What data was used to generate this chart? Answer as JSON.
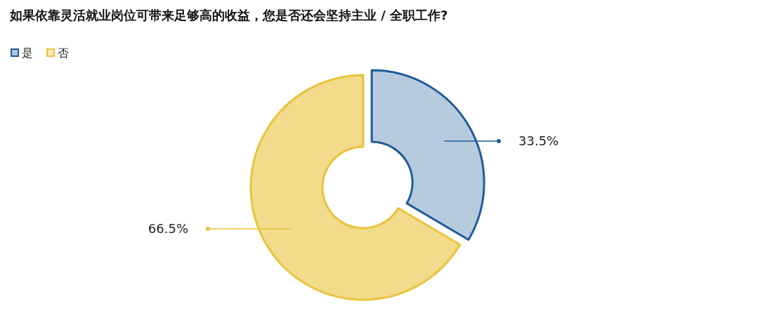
{
  "chart_data": {
    "type": "donut",
    "title": "如果依靠灵活就业岗位可带来足够高的收益，您是否还会坚持主业 / 全职工作?",
    "categories": [
      "是",
      "否"
    ],
    "values": [
      33.5,
      66.5
    ],
    "colors": [
      "#1f5c99",
      "#e9c33c"
    ],
    "value_labels": [
      "33.5%",
      "66.5%"
    ],
    "legend": "top left"
  }
}
